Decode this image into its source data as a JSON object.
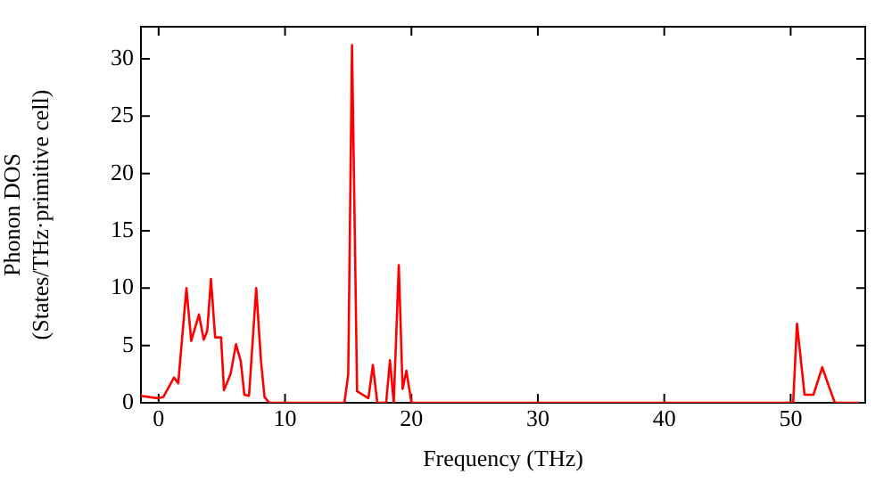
{
  "chart_data": {
    "type": "line",
    "xlabel": "Frequency (THz)",
    "ylabel": "Phonon DOS\n(States/THz·primitive cell)",
    "x": [
      -1.4,
      -1.27,
      -0.1,
      0.37,
      1.22,
      1.55,
      2.2,
      2.58,
      3.19,
      3.57,
      3.85,
      4.14,
      4.47,
      4.94,
      5.17,
      5.69,
      6.12,
      6.5,
      6.78,
      7.15,
      7.72,
      8.1,
      8.38,
      8.76,
      14.7,
      15.0,
      15.3,
      15.7,
      16.6,
      16.95,
      17.3,
      18.0,
      18.3,
      18.6,
      19.0,
      19.3,
      19.6,
      20.0,
      50.2,
      50.5,
      51.1,
      51.8,
      52.5,
      53.1,
      53.5,
      55.4
    ],
    "series": [
      {
        "color": "#ff0000",
        "values": [
          0.6,
          0.6,
          0.4,
          0.5,
          2.2,
          1.7,
          10.0,
          5.4,
          7.7,
          5.5,
          6.3,
          10.8,
          5.7,
          5.7,
          1.1,
          2.5,
          5.1,
          3.6,
          0.7,
          0.6,
          10.0,
          3.6,
          0.5,
          0,
          0,
          2.5,
          31.2,
          1.0,
          0.4,
          3.3,
          0,
          0,
          3.7,
          0,
          12.0,
          1.2,
          2.8,
          0,
          0,
          6.9,
          0.7,
          0.7,
          3.1,
          1.2,
          0,
          0
        ]
      }
    ],
    "xlim": [
      -1.4,
      55.9
    ],
    "xticks": [
      0,
      10,
      20,
      30,
      40,
      50
    ],
    "ylim": [
      0,
      32.8
    ],
    "yticks": [
      0,
      5,
      10,
      15,
      20,
      25,
      30
    ],
    "grid": false,
    "legend": false,
    "marker": "none",
    "line_style": "solid"
  }
}
